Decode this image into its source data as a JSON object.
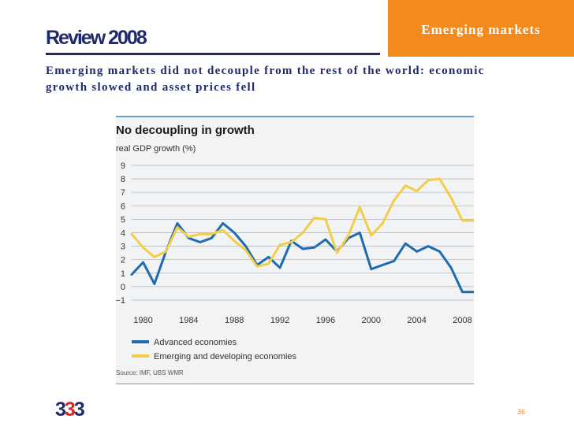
{
  "slide": {
    "title": "Review 2008",
    "section": "Emerging markets",
    "subtitle": "Emerging markets did not decouple from the rest of the world: economic growth slowed and asset prices fell",
    "logo": [
      "3",
      "3",
      "3"
    ],
    "page_number": "36"
  },
  "colors": {
    "title": "#1f2a6b",
    "section_tab": "#f28a1e",
    "advanced": "#1f6bb0",
    "emerging": "#f2cd4a",
    "panel": "#f2f3f4",
    "panel_rule": "#6e9fd2"
  },
  "chart_data": {
    "type": "line",
    "title": "No decoupling in growth",
    "ylabel": "real GDP growth (%)",
    "xlabel": "",
    "source": "Source: IMF, UBS WMR",
    "xlim": [
      1979,
      2009
    ],
    "ylim": [
      -1,
      9
    ],
    "y_ticks": [
      "9",
      "8",
      "7",
      "6",
      "5",
      "4",
      "3",
      "2",
      "1",
      "0",
      "−1"
    ],
    "x_ticks": [
      "1980",
      "1984",
      "1988",
      "1992",
      "1996",
      "2000",
      "2004",
      "2008"
    ],
    "grid": true,
    "legend_position": "bottom-left",
    "x": [
      1979,
      1980,
      1981,
      1982,
      1983,
      1984,
      1985,
      1986,
      1987,
      1988,
      1989,
      1990,
      1991,
      1992,
      1993,
      1994,
      1995,
      1996,
      1997,
      1998,
      1999,
      2000,
      2001,
      2002,
      2003,
      2004,
      2005,
      2006,
      2007,
      2008,
      2009
    ],
    "series": [
      {
        "name": "Advanced economies",
        "color": "#1f6bb0",
        "values": [
          0.9,
          1.8,
          0.2,
          2.6,
          4.7,
          3.6,
          3.3,
          3.6,
          4.7,
          4.0,
          3.0,
          1.6,
          2.2,
          1.4,
          3.4,
          2.8,
          2.9,
          3.5,
          2.6,
          3.6,
          4.0,
          1.3,
          1.6,
          1.9,
          3.2,
          2.6,
          3.0,
          2.6,
          1.4,
          -0.4,
          -0.4
        ]
      },
      {
        "name": "Emerging and developing economies",
        "color": "#f2cd4a",
        "values": [
          3.9,
          2.9,
          2.2,
          2.6,
          4.4,
          3.7,
          3.9,
          3.9,
          4.2,
          3.4,
          2.7,
          1.5,
          1.7,
          3.1,
          3.3,
          4.0,
          5.1,
          5.0,
          2.5,
          3.8,
          5.9,
          3.8,
          4.7,
          6.4,
          7.5,
          7.1,
          7.9,
          8.0,
          6.6,
          4.9,
          4.9
        ]
      }
    ]
  }
}
